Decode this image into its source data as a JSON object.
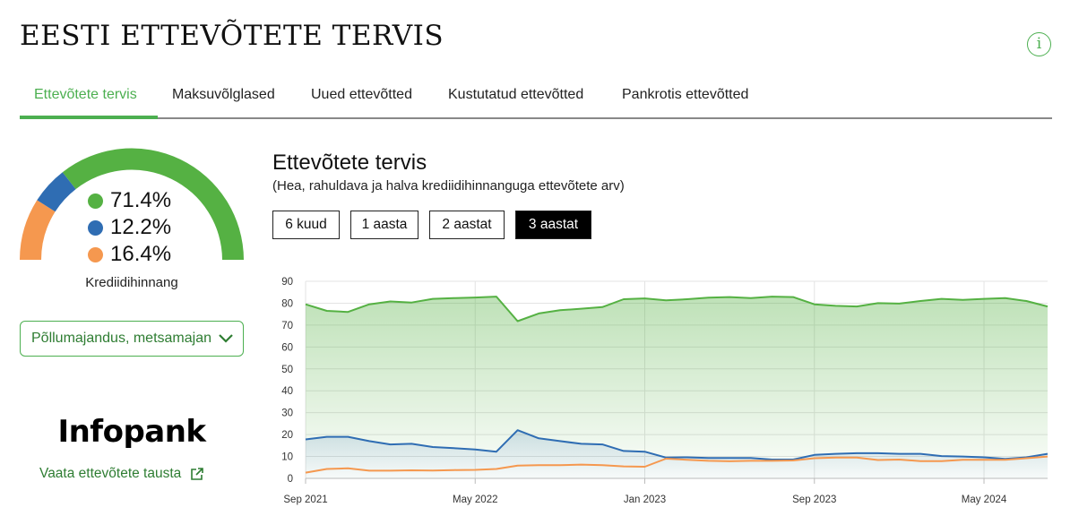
{
  "header": {
    "title": "EESTI ETTEVÕTETE TERVIS",
    "info_icon": "info-icon"
  },
  "tabs": [
    {
      "label": "Ettevõtete tervis",
      "active": true
    },
    {
      "label": "Maksuvõlglased",
      "active": false
    },
    {
      "label": "Uued ettevõtted",
      "active": false
    },
    {
      "label": "Kustutatud ettevõtted",
      "active": false
    },
    {
      "label": "Pankrotis ettevõtted",
      "active": false
    }
  ],
  "gauge": {
    "items": [
      {
        "value": "71.4%",
        "color": "#55b143"
      },
      {
        "value": "12.2%",
        "color": "#2f6db3"
      },
      {
        "value": "16.4%",
        "color": "#f5984f"
      }
    ],
    "label": "Krediidihinnang"
  },
  "sector_select": {
    "value": "Põllumajandus, metsamajandus ja kalapüük"
  },
  "infopank": {
    "logo": "Infopank",
    "link": "Vaata ettevõtete tausta"
  },
  "chart_panel": {
    "title": "Ettevõtete tervis",
    "subtitle": "(Hea, rahuldava ja halva krediidihinnanguga ettevõtete arv)",
    "periods": [
      {
        "label": "6 kuud",
        "active": false
      },
      {
        "label": "1 aasta",
        "active": false
      },
      {
        "label": "2 aastat",
        "active": false
      },
      {
        "label": "3 aastat",
        "active": true
      }
    ]
  },
  "chart_data": {
    "type": "area",
    "x_ticks": [
      "Sep 2021",
      "May 2022",
      "Jan 2023",
      "Sep 2023",
      "May 2024"
    ],
    "ylim": [
      0,
      90
    ],
    "y_ticks": [
      0,
      10,
      20,
      30,
      40,
      50,
      60,
      70,
      80,
      90
    ],
    "grid": true,
    "x_start": "2021-09",
    "x_end": "2024-08",
    "series": [
      {
        "color": "#55b143",
        "values": [
          79.5,
          76.5,
          76,
          79.5,
          80.8,
          80.3,
          82,
          82.3,
          82.6,
          83,
          71.8,
          75.3,
          76.8,
          77.5,
          78.2,
          81.8,
          82.2,
          81.3,
          81.8,
          82.5,
          82.8,
          82.3,
          83,
          82.8,
          79.5,
          78.8,
          78.5,
          80,
          79.8,
          81,
          82,
          81.5,
          82,
          82.3,
          81,
          78.5
        ]
      },
      {
        "color": "#2f6db3",
        "values": [
          17.8,
          19,
          19,
          17,
          15.5,
          15.8,
          14.3,
          13.8,
          13.2,
          12.2,
          22,
          18.3,
          17,
          15.8,
          15.5,
          12.5,
          12.2,
          9.5,
          9.6,
          9.3,
          9.3,
          9.3,
          8.6,
          8.6,
          10.7,
          11.2,
          11.5,
          11.5,
          11.2,
          11.2,
          10.2,
          10,
          9.6,
          8.9,
          9.6,
          11.2
        ]
      },
      {
        "color": "#f5984f",
        "values": [
          2.6,
          4.3,
          4.6,
          3.5,
          3.5,
          3.7,
          3.6,
          3.8,
          3.9,
          4.3,
          5.8,
          6,
          6,
          6.3,
          6,
          5.5,
          5.3,
          9,
          8.5,
          8,
          7.8,
          8,
          8,
          8.2,
          9.2,
          9.5,
          9.5,
          8.4,
          8.6,
          7.9,
          7.9,
          8.5,
          8.5,
          8.5,
          9.2,
          10
        ]
      }
    ]
  }
}
